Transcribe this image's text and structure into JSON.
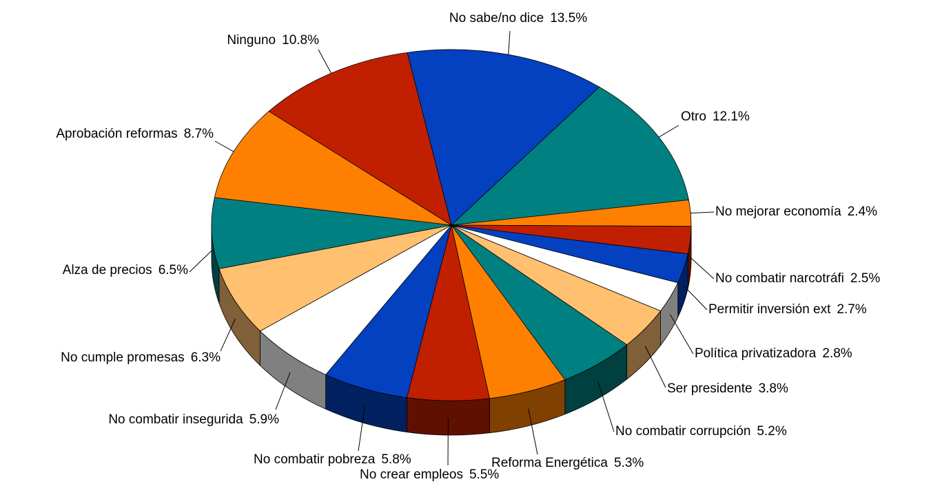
{
  "chart_data": {
    "type": "pie",
    "categories": [
      "No sabe/no dice",
      "Otro",
      "No mejorar economía",
      "No combatir narcotráfi",
      "Permitir inversión ext",
      "Política privatizadora",
      "Ser presidente",
      "No combatir corrupción",
      "Reforma Energética",
      "No crear empleos",
      "No combatir pobreza",
      "No combatir insegurida",
      "No cumple promesas",
      "Alza de precios",
      "Aprobación reformas",
      "Ninguno"
    ],
    "values": [
      13.5,
      12.1,
      2.4,
      2.5,
      2.7,
      2.8,
      3.8,
      5.2,
      5.3,
      5.5,
      5.8,
      5.9,
      6.3,
      6.5,
      8.7,
      10.8
    ],
    "value_labels": [
      "13.5%",
      "12.1%",
      "2.4%",
      "2.5%",
      "2.7%",
      "2.8%",
      "3.8%",
      "5.2%",
      "5.3%",
      "5.5%",
      "5.8%",
      "5.9%",
      "6.3%",
      "6.5%",
      "8.7%",
      "10.8%"
    ],
    "colors": [
      "#0341c0",
      "#008080",
      "#ff8000",
      "#c02000",
      "#0341c0",
      "#ffffff",
      "#ffc070",
      "#008080",
      "#ff8000",
      "#c02000",
      "#0341c0",
      "#ffffff",
      "#ffc070",
      "#008080",
      "#ff8000",
      "#c02000"
    ]
  }
}
